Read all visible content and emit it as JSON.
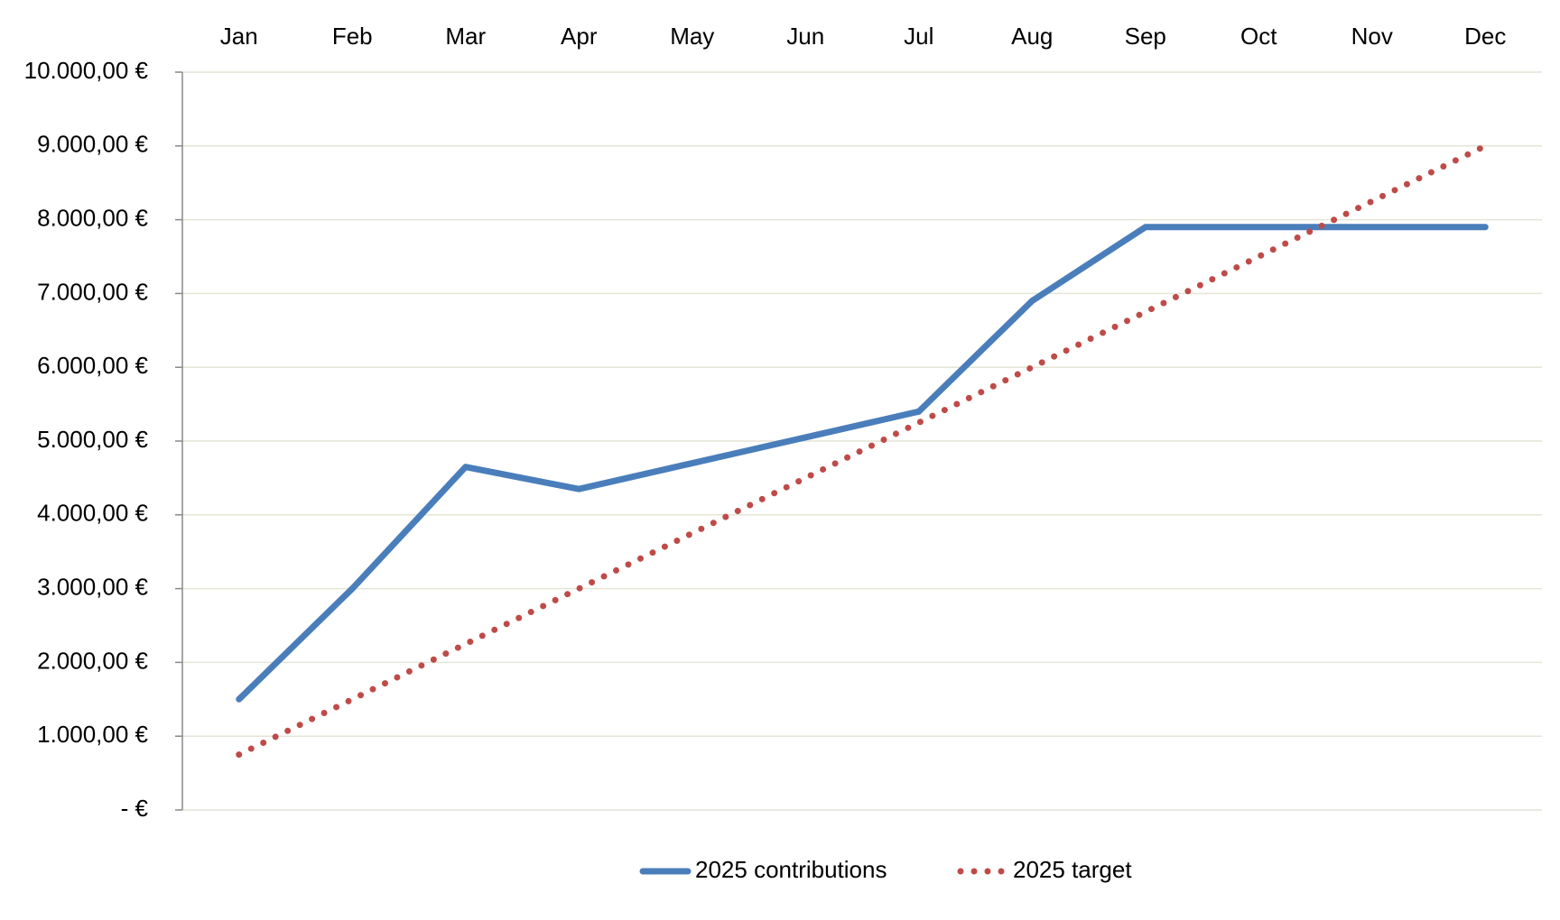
{
  "chart_data": {
    "type": "line",
    "categories": [
      "Jan",
      "Feb",
      "Mar",
      "Apr",
      "May",
      "Jun",
      "Jul",
      "Aug",
      "Sep",
      "Oct",
      "Nov",
      "Dec"
    ],
    "series": [
      {
        "name": "2025 contributions",
        "color": "#4a7ebb",
        "style": "solid",
        "values": [
          1500,
          3000,
          4650,
          4350,
          4700,
          5050,
          5400,
          6900,
          7900,
          7900,
          7900,
          7900
        ]
      },
      {
        "name": "2025 target",
        "color": "#be4b48",
        "style": "dotted",
        "values": [
          750,
          1500,
          2250,
          3000,
          3750,
          4500,
          5250,
          6000,
          6750,
          7500,
          8250,
          9000
        ]
      }
    ],
    "ylim": [
      0,
      10000
    ],
    "yticks": [
      {
        "value": 0,
        "label": "-  €"
      },
      {
        "value": 1000,
        "label": "1.000,00 €"
      },
      {
        "value": 2000,
        "label": "2.000,00 €"
      },
      {
        "value": 3000,
        "label": "3.000,00 €"
      },
      {
        "value": 4000,
        "label": "4.000,00 €"
      },
      {
        "value": 5000,
        "label": "5.000,00 €"
      },
      {
        "value": 6000,
        "label": "6.000,00 €"
      },
      {
        "value": 7000,
        "label": "7.000,00 €"
      },
      {
        "value": 8000,
        "label": "8.000,00 €"
      },
      {
        "value": 9000,
        "label": "9.000,00 €"
      },
      {
        "value": 10000,
        "label": "10.000,00 €"
      }
    ],
    "grid": true,
    "legend": "bottom"
  }
}
